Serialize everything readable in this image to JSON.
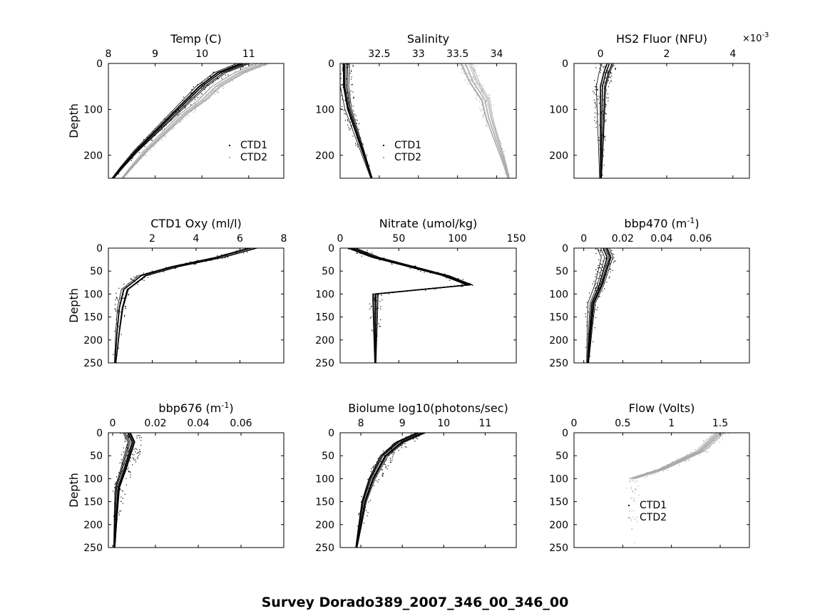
{
  "figure": {
    "title": "Survey Dorado389_2007_346_00_346_00"
  },
  "chart_data": [
    {
      "type": "scatter",
      "title": "Temp (C)",
      "ylabel": "Depth",
      "xlim": [
        8,
        11.75
      ],
      "ylim": [
        0,
        250
      ],
      "y_reversed": true,
      "x_axis": "top",
      "xticks": [
        "8",
        "9",
        "10",
        "11"
      ],
      "yticks": [
        "0",
        "100",
        "200"
      ],
      "legend": [
        "CTD1",
        "CTD2"
      ],
      "legend_location": "right",
      "series": [
        {
          "name": "CTD1",
          "color": "#000000",
          "profile": [
            [
              10.9,
              0
            ],
            [
              10.4,
              20
            ],
            [
              10.0,
              50
            ],
            [
              9.7,
              80
            ],
            [
              9.4,
              110
            ],
            [
              9.0,
              150
            ],
            [
              8.6,
              190
            ],
            [
              8.3,
              225
            ],
            [
              8.1,
              250
            ]
          ]
        },
        {
          "name": "CTD2",
          "color": "#aaaaaa",
          "profile": [
            [
              11.3,
              0
            ],
            [
              10.8,
              20
            ],
            [
              10.3,
              50
            ],
            [
              10.0,
              80
            ],
            [
              9.6,
              110
            ],
            [
              9.2,
              150
            ],
            [
              8.8,
              190
            ],
            [
              8.5,
              225
            ],
            [
              8.3,
              250
            ]
          ]
        }
      ]
    },
    {
      "type": "scatter",
      "title": "Salinity",
      "ylabel": "",
      "xlim": [
        32.0,
        34.25
      ],
      "ylim": [
        0,
        250
      ],
      "y_reversed": true,
      "x_axis": "top",
      "xticks": [
        "32.5",
        "33",
        "33.5",
        "34"
      ],
      "yticks": [
        "0",
        "100",
        "200"
      ],
      "legend": [
        "CTD1",
        "CTD2"
      ],
      "legend_location": "center",
      "series": [
        {
          "name": "CTD1",
          "color": "#000000",
          "profile": [
            [
              32.05,
              0
            ],
            [
              32.05,
              50
            ],
            [
              32.1,
              100
            ],
            [
              32.2,
              150
            ],
            [
              32.3,
              200
            ],
            [
              32.4,
              250
            ]
          ]
        },
        {
          "name": "CTD2",
          "color": "#aaaaaa",
          "profile": [
            [
              33.6,
              0
            ],
            [
              33.7,
              40
            ],
            [
              33.85,
              80
            ],
            [
              33.9,
              120
            ],
            [
              34.0,
              170
            ],
            [
              34.1,
              220
            ],
            [
              34.15,
              250
            ]
          ]
        }
      ]
    },
    {
      "type": "scatter",
      "title": "HS2 Fluor (NFU)",
      "ylabel": "",
      "x_exponent": "×10-3",
      "xlim": [
        -0.8,
        4.5
      ],
      "ylim": [
        0,
        250
      ],
      "y_reversed": true,
      "x_axis": "top",
      "xticks": [
        "0",
        "2",
        "4"
      ],
      "yticks": [
        "0",
        "100",
        "200"
      ],
      "series": [
        {
          "name": "",
          "color": "#000000",
          "profile": [
            [
              0.2,
              0
            ],
            [
              0.1,
              20
            ],
            [
              0.0,
              50
            ],
            [
              0.0,
              100
            ],
            [
              0.0,
              150
            ],
            [
              0.0,
              200
            ],
            [
              0.0,
              250
            ]
          ]
        }
      ]
    },
    {
      "type": "scatter",
      "title": "CTD1 Oxy (ml/l)",
      "ylabel": "Depth",
      "xlim": [
        0,
        8
      ],
      "ylim": [
        0,
        250
      ],
      "y_reversed": true,
      "x_axis": "top",
      "xticks": [
        "2",
        "4",
        "6",
        "8"
      ],
      "yticks": [
        "0",
        "50",
        "100",
        "150",
        "200",
        "250"
      ],
      "series": [
        {
          "name": "",
          "color": "#000000",
          "profile": [
            [
              6.5,
              0
            ],
            [
              5.0,
              20
            ],
            [
              3.0,
              40
            ],
            [
              1.5,
              60
            ],
            [
              0.7,
              90
            ],
            [
              0.5,
              130
            ],
            [
              0.4,
              180
            ],
            [
              0.3,
              250
            ]
          ]
        }
      ]
    },
    {
      "type": "scatter",
      "title": "Nitrate (umol/kg)",
      "ylabel": "",
      "xlim": [
        0,
        150
      ],
      "ylim": [
        0,
        250
      ],
      "y_reversed": true,
      "x_axis": "top",
      "xticks": [
        "0",
        "50",
        "100",
        "150"
      ],
      "yticks": [
        "0",
        "50",
        "100",
        "150",
        "200",
        "250"
      ],
      "series": [
        {
          "name": "",
          "color": "#000000",
          "profile": [
            [
              10,
              0
            ],
            [
              30,
              20
            ],
            [
              60,
              40
            ],
            [
              90,
              60
            ],
            [
              110,
              80
            ],
            [
              30,
              100
            ],
            [
              30,
              150
            ],
            [
              30,
              200
            ],
            [
              30,
              250
            ]
          ]
        }
      ]
    },
    {
      "type": "scatter",
      "title": "bbp470 (m-1)",
      "ylabel": "",
      "xlim": [
        -0.005,
        0.085
      ],
      "ylim": [
        0,
        250
      ],
      "y_reversed": true,
      "x_axis": "top",
      "xticks": [
        "0",
        "0.02",
        "0.04",
        "0.06"
      ],
      "yticks": [
        "0",
        "50",
        "100",
        "150",
        "200",
        "250"
      ],
      "series": [
        {
          "name": "",
          "color": "#000000",
          "profile": [
            [
              0.01,
              0
            ],
            [
              0.012,
              20
            ],
            [
              0.01,
              50
            ],
            [
              0.008,
              80
            ],
            [
              0.004,
              120
            ],
            [
              0.003,
              180
            ],
            [
              0.002,
              250
            ]
          ]
        }
      ]
    },
    {
      "type": "scatter",
      "title": "bbp676 (m-1)",
      "ylabel": "Depth",
      "xlim": [
        -0.002,
        0.08
      ],
      "ylim": [
        0,
        250
      ],
      "y_reversed": true,
      "x_axis": "top",
      "xticks": [
        "0",
        "0.02",
        "0.04",
        "0.06"
      ],
      "yticks": [
        "0",
        "50",
        "100",
        "150",
        "200",
        "250"
      ],
      "series": [
        {
          "name": "",
          "color": "#000000",
          "profile": [
            [
              0.008,
              0
            ],
            [
              0.01,
              20
            ],
            [
              0.008,
              50
            ],
            [
              0.006,
              80
            ],
            [
              0.003,
              120
            ],
            [
              0.002,
              180
            ],
            [
              0.001,
              250
            ]
          ]
        }
      ]
    },
    {
      "type": "scatter",
      "title": "Biolume log10(photons/sec)",
      "ylabel": "",
      "xlim": [
        7.5,
        11.75
      ],
      "ylim": [
        0,
        250
      ],
      "y_reversed": true,
      "x_axis": "top",
      "xticks": [
        "8",
        "9",
        "10",
        "11"
      ],
      "yticks": [
        "0",
        "50",
        "100",
        "150",
        "200",
        "250"
      ],
      "series": [
        {
          "name": "",
          "color": "#000000",
          "profile": [
            [
              9.5,
              0
            ],
            [
              9.0,
              20
            ],
            [
              8.6,
              50
            ],
            [
              8.3,
              100
            ],
            [
              8.1,
              150
            ],
            [
              8.0,
              200
            ],
            [
              7.9,
              250
            ]
          ]
        }
      ]
    },
    {
      "type": "scatter",
      "title": "Flow (Volts)",
      "ylabel": "",
      "xlim": [
        0,
        1.8
      ],
      "ylim": [
        0,
        250
      ],
      "y_reversed": true,
      "x_axis": "top",
      "xticks": [
        "0",
        "0.5",
        "1",
        "1.5"
      ],
      "yticks": [
        "0",
        "50",
        "100",
        "150",
        "200",
        "250"
      ],
      "legend": [
        "CTD1",
        "CTD2"
      ],
      "legend_location": "center-left",
      "series": [
        {
          "name": "CTD2",
          "color": "#aaaaaa",
          "profile": [
            [
              1.5,
              0
            ],
            [
              1.4,
              20
            ],
            [
              1.3,
              40
            ],
            [
              1.1,
              60
            ],
            [
              0.9,
              80
            ],
            [
              0.6,
              100
            ]
          ]
        }
      ]
    }
  ]
}
